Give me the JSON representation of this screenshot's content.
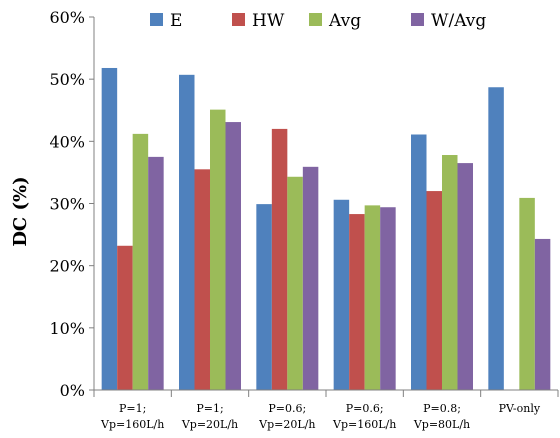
{
  "chart_data": {
    "type": "bar",
    "ylabel": "DC (%)",
    "xlabel": "",
    "ylim": [
      0,
      60
    ],
    "yticks": [
      "0%",
      "10%",
      "20%",
      "30%",
      "40%",
      "50%",
      "60%"
    ],
    "grid": false,
    "legend_position": "top",
    "categories": [
      [
        "P=1;",
        "Vp=160L/h"
      ],
      [
        "P=1;",
        "Vp=20L/h"
      ],
      [
        "P=0.6;",
        "Vp=20L/h"
      ],
      [
        "P=0.6;",
        "Vp=160L/h"
      ],
      [
        "P=0.8;",
        "Vp=80L/h"
      ],
      [
        "PV-only",
        ""
      ]
    ],
    "series": [
      {
        "name": "E",
        "color": "#4f81bd",
        "values": [
          51.8,
          50.7,
          29.9,
          30.6,
          41.1,
          48.7
        ]
      },
      {
        "name": "HW",
        "color": "#c0504d",
        "values": [
          23.2,
          35.5,
          42.0,
          28.3,
          32.0,
          null
        ]
      },
      {
        "name": "Avg",
        "color": "#9bbb59",
        "values": [
          41.2,
          45.1,
          34.3,
          29.7,
          37.8,
          30.9
        ]
      },
      {
        "name": "W/Avg",
        "color": "#8064a2",
        "values": [
          37.5,
          43.1,
          35.9,
          29.4,
          36.5,
          24.3
        ]
      }
    ]
  }
}
